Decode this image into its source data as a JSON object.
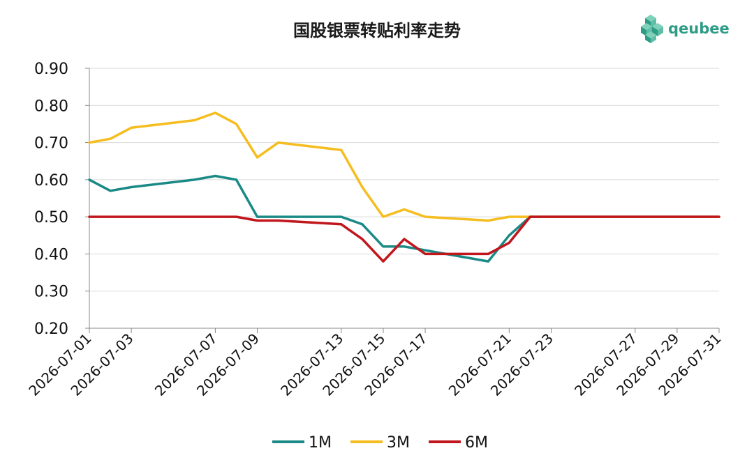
{
  "chart_data": {
    "type": "line",
    "title": "国股银票转贴利率走势",
    "brand": {
      "name": "qeubee",
      "color": "#2e9b86"
    },
    "x": [
      "2026-07-01",
      "2026-07-02",
      "2026-07-03",
      "2026-07-06",
      "2026-07-07",
      "2026-07-08",
      "2026-07-09",
      "2026-07-10",
      "2026-07-13",
      "2026-07-14",
      "2026-07-15",
      "2026-07-16",
      "2026-07-17",
      "2026-07-20",
      "2026-07-21",
      "2026-07-22",
      "2026-07-23",
      "2026-07-24",
      "2026-07-27",
      "2026-07-28",
      "2026-07-29",
      "2026-07-30",
      "2026-07-31"
    ],
    "x_tick_labels": [
      "2026-07-01",
      "2026-07-03",
      "2026-07-07",
      "2026-07-09",
      "2026-07-13",
      "2026-07-15",
      "2026-07-17",
      "2026-07-21",
      "2026-07-23",
      "2026-07-27",
      "2026-07-29",
      "2026-07-31"
    ],
    "y_ticks": [
      "0.20",
      "0.30",
      "0.40",
      "0.50",
      "0.60",
      "0.70",
      "0.80",
      "0.90"
    ],
    "ylim": [
      0.2,
      0.9
    ],
    "grid": true,
    "legend_position": "bottom",
    "series": [
      {
        "name": "1M",
        "color": "#1a8a86",
        "values": [
          0.6,
          0.57,
          0.58,
          0.6,
          0.61,
          0.6,
          0.5,
          0.5,
          0.5,
          0.48,
          0.42,
          0.42,
          0.41,
          0.38,
          0.45,
          0.5,
          0.5,
          0.5,
          0.5,
          0.5,
          0.5,
          0.5,
          0.5
        ]
      },
      {
        "name": "3M",
        "color": "#f5bd1f",
        "values": [
          0.7,
          0.71,
          0.74,
          0.76,
          0.78,
          0.75,
          0.66,
          0.7,
          0.68,
          0.58,
          0.5,
          0.52,
          0.5,
          0.49,
          0.5,
          0.5,
          0.5,
          0.5,
          0.5,
          0.5,
          0.5,
          0.5,
          0.5
        ]
      },
      {
        "name": "6M",
        "color": "#c0161c",
        "values": [
          0.5,
          0.5,
          0.5,
          0.5,
          0.5,
          0.5,
          0.49,
          0.49,
          0.48,
          0.44,
          0.38,
          0.44,
          0.4,
          0.4,
          0.43,
          0.5,
          0.5,
          0.5,
          0.5,
          0.5,
          0.5,
          0.5,
          0.5
        ]
      }
    ]
  }
}
